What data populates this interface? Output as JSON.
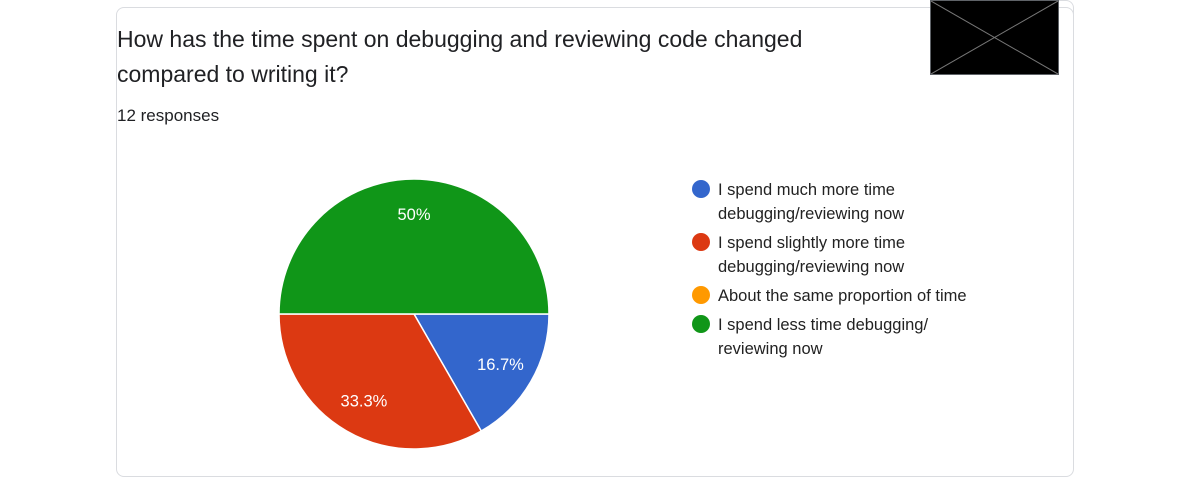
{
  "question": {
    "title": "How has the time spent on debugging and reviewing code changed\ncompared to writing it?",
    "responses_label": "12 responses"
  },
  "image_placeholder": {
    "icon": "broken-image-icon"
  },
  "colors": {
    "blue": "#3366cc",
    "red": "#dc3912",
    "orange": "#ff9900",
    "green": "#109618"
  },
  "chart_data": {
    "type": "pie",
    "title": "",
    "categories": [
      "I spend much more time debugging/reviewing now",
      "I spend slightly more time debugging/reviewing now",
      "About the same proportion of time",
      "I spend less time debugging/ reviewing now"
    ],
    "values": [
      16.7,
      33.3,
      0,
      50
    ],
    "data_labels": [
      "16.7%",
      "33.3%",
      "",
      "50%"
    ],
    "colors": [
      "#3366cc",
      "#dc3912",
      "#ff9900",
      "#109618"
    ],
    "legend_position": "right"
  }
}
